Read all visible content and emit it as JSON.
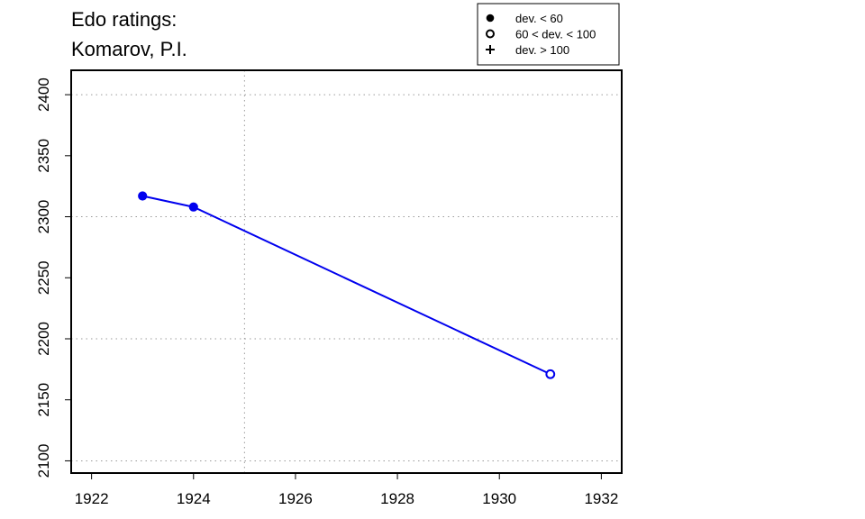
{
  "chart_data": {
    "type": "line",
    "title": [
      "Edo ratings:",
      "Komarov, P.I."
    ],
    "xlabel": "",
    "ylabel": "",
    "xlim": [
      1921.6,
      1932.4
    ],
    "ylim": [
      2090,
      2420
    ],
    "x_ticks": [
      1922,
      1924,
      1926,
      1928,
      1930,
      1932
    ],
    "y_ticks": [
      2100,
      2150,
      2200,
      2250,
      2300,
      2350,
      2400
    ],
    "grid": {
      "x": [
        1925
      ],
      "y": [
        2100,
        2200,
        2300,
        2400
      ]
    },
    "series": [
      {
        "color": "#0000ee",
        "points": [
          {
            "x": 1923,
            "y": 2317,
            "marker": "filled-circle"
          },
          {
            "x": 1924,
            "y": 2308,
            "marker": "filled-circle"
          },
          {
            "x": 1931,
            "y": 2171,
            "marker": "open-circle"
          }
        ]
      }
    ],
    "legend": {
      "position": "top-right",
      "entries": [
        {
          "marker": "filled-circle",
          "label": "dev. < 60"
        },
        {
          "marker": "open-circle",
          "label": "60 < dev. < 100"
        },
        {
          "marker": "plus",
          "label": "dev. > 100"
        }
      ]
    }
  }
}
